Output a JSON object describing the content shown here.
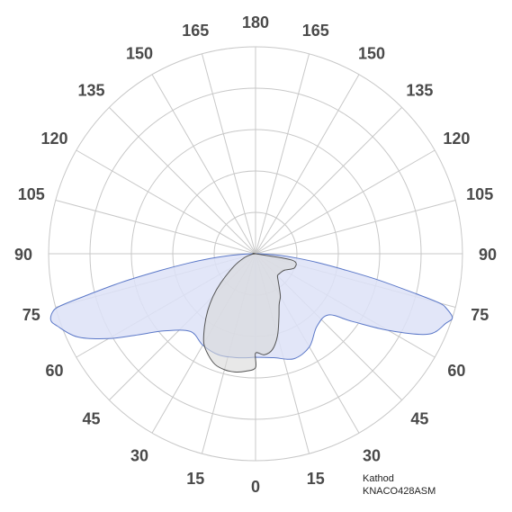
{
  "chart_data": {
    "type": "polar",
    "angle_labels": [
      "180",
      "165",
      "150",
      "135",
      "120",
      "105",
      "90",
      "75",
      "60",
      "45",
      "30",
      "15",
      "0",
      "15",
      "30",
      "45",
      "60",
      "75",
      "90",
      "105",
      "120",
      "135",
      "150",
      "165"
    ],
    "radial_rings": 5,
    "grid": true,
    "colors": {
      "c0_fill": "#dde2f7",
      "c0_stroke": "#5b78c8",
      "c90_fill": "#d9d9d9",
      "c90_stroke": "#555555",
      "grid": "#c8c8c8"
    },
    "series": [
      {
        "angles_deg": [
          0,
          10,
          20,
          30,
          40,
          50,
          55,
          60,
          65,
          70,
          72,
          74,
          75,
          76,
          78,
          80,
          82,
          84,
          86,
          88,
          90
        ],
        "right_r": [
          0.5,
          0.51,
          0.54,
          0.52,
          0.46,
          0.46,
          0.57,
          0.74,
          0.92,
          0.98,
          1.0,
          0.96,
          0.92,
          0.8,
          0.6,
          0.42,
          0.3,
          0.2,
          0.12,
          0.05,
          0.0
        ],
        "left_r": [
          0.5,
          0.51,
          0.52,
          0.51,
          0.49,
          0.58,
          0.68,
          0.82,
          0.95,
          1.02,
          1.04,
          1.02,
          0.98,
          0.86,
          0.66,
          0.47,
          0.33,
          0.22,
          0.13,
          0.05,
          0.0
        ]
      },
      {
        "angles_deg": [
          0,
          5,
          10,
          15,
          20,
          25,
          30,
          35,
          40,
          45,
          50,
          60,
          70,
          80,
          90
        ],
        "right_r": [
          0.48,
          0.49,
          0.47,
          0.41,
          0.33,
          0.27,
          0.24,
          0.2,
          0.17,
          0.15,
          0.15,
          0.16,
          0.2,
          0.18,
          0.0
        ],
        "left_r": [
          0.55,
          0.57,
          0.58,
          0.58,
          0.57,
          0.54,
          0.5,
          0.43,
          0.36,
          0.29,
          0.22,
          0.12,
          0.06,
          0.02,
          0.0
        ]
      }
    ]
  },
  "footer": {
    "brand": "Kathod",
    "model": "KNACO428ASM"
  }
}
